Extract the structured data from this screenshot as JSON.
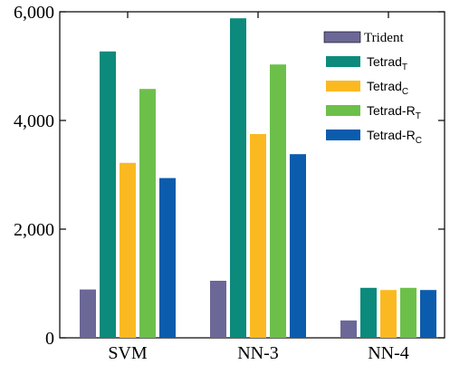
{
  "chart_data": {
    "type": "bar",
    "categories": [
      "SVM",
      "NN-3",
      "NN-4"
    ],
    "y_ticks": [
      {
        "value": 0,
        "label": "0"
      },
      {
        "value": 2000,
        "label": "2,000"
      },
      {
        "value": 4000,
        "label": "4,000"
      },
      {
        "value": 6000,
        "label": "6,000"
      }
    ],
    "ylim": [
      0,
      6000
    ],
    "xlabel": "",
    "ylabel": "",
    "title": "",
    "grid": false,
    "legend_position": "top-right",
    "series": [
      {
        "name": "Trident",
        "sub": "",
        "serif": true,
        "color": "#6b6797",
        "values": [
          890,
          1050,
          320
        ]
      },
      {
        "name": "Tetrad",
        "sub": "T",
        "serif": false,
        "color": "#0c8a7c",
        "values": [
          5270,
          5880,
          920
        ]
      },
      {
        "name": "Tetrad",
        "sub": "C",
        "serif": false,
        "color": "#fbb921",
        "values": [
          3220,
          3750,
          880
        ]
      },
      {
        "name": "Tetrad-R",
        "sub": "T",
        "serif": false,
        "color": "#6cc04a",
        "values": [
          4580,
          5030,
          920
        ]
      },
      {
        "name": "Tetrad-R",
        "sub": "C",
        "serif": false,
        "color": "#0b5cad",
        "values": [
          2940,
          3380,
          880
        ]
      }
    ]
  }
}
